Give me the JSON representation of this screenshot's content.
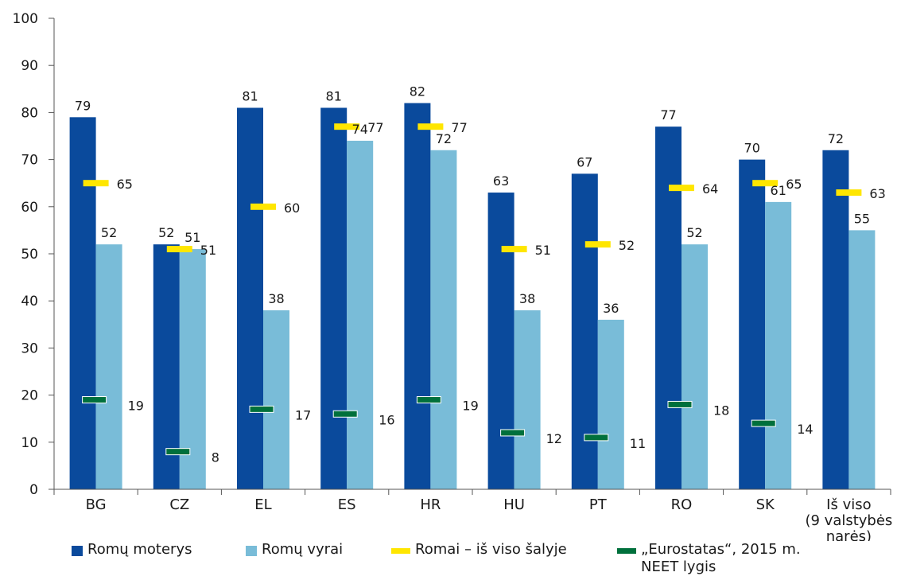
{
  "chart_data": {
    "type": "bar",
    "categories": [
      "BG",
      "CZ",
      "EL",
      "ES",
      "HR",
      "HU",
      "PT",
      "RO",
      "SK",
      "Iš viso\n(9 valstybės\nnarės)"
    ],
    "series": [
      {
        "name": "Romų moterys",
        "kind": "bar",
        "color": "#0a4a9c",
        "values": [
          79,
          52,
          81,
          81,
          82,
          63,
          67,
          77,
          70,
          72
        ],
        "labels": [
          "79",
          "52",
          "81",
          "81",
          "82",
          "63",
          "67",
          "77",
          "70",
          "72"
        ]
      },
      {
        "name": "Romų vyrai",
        "kind": "bar",
        "color": "#79bcd8",
        "values": [
          52,
          51,
          38,
          74,
          72,
          38,
          36,
          52,
          61,
          55
        ],
        "labels": [
          "52",
          "51",
          "38",
          "74",
          "72",
          "38",
          "36",
          "52",
          "61",
          "55"
        ]
      },
      {
        "name": "Romai – iš viso šalyje",
        "kind": "marker",
        "color": "#ffe600",
        "values": [
          65,
          51,
          60,
          77,
          77,
          51,
          52,
          64,
          65,
          63
        ],
        "labels": [
          "65",
          "51",
          "60",
          "77",
          "77",
          "51",
          "52",
          "64",
          "65",
          "63"
        ]
      },
      {
        "name": "„Eurostatas“, 2015 m. NEET lygis",
        "kind": "marker",
        "color": "#00703c",
        "values": [
          19,
          8,
          17,
          16,
          19,
          12,
          11,
          18,
          14,
          null
        ],
        "labels": [
          "19",
          "8",
          "17",
          "16",
          "19",
          "12",
          "11",
          "18",
          "14",
          null
        ]
      }
    ],
    "ylim": [
      0,
      100
    ],
    "yticks": [
      0,
      10,
      20,
      30,
      40,
      50,
      60,
      70,
      80,
      90,
      100
    ],
    "grid": false,
    "legend_position": "bottom",
    "legend_lines": {
      "s0": [
        "Romų moterys"
      ],
      "s1": [
        "Romų vyrai"
      ],
      "s2": [
        "Romai – iš viso šalyje"
      ],
      "s3": [
        "„Eurostatas“, 2015 m.",
        "NEET lygis"
      ]
    }
  }
}
